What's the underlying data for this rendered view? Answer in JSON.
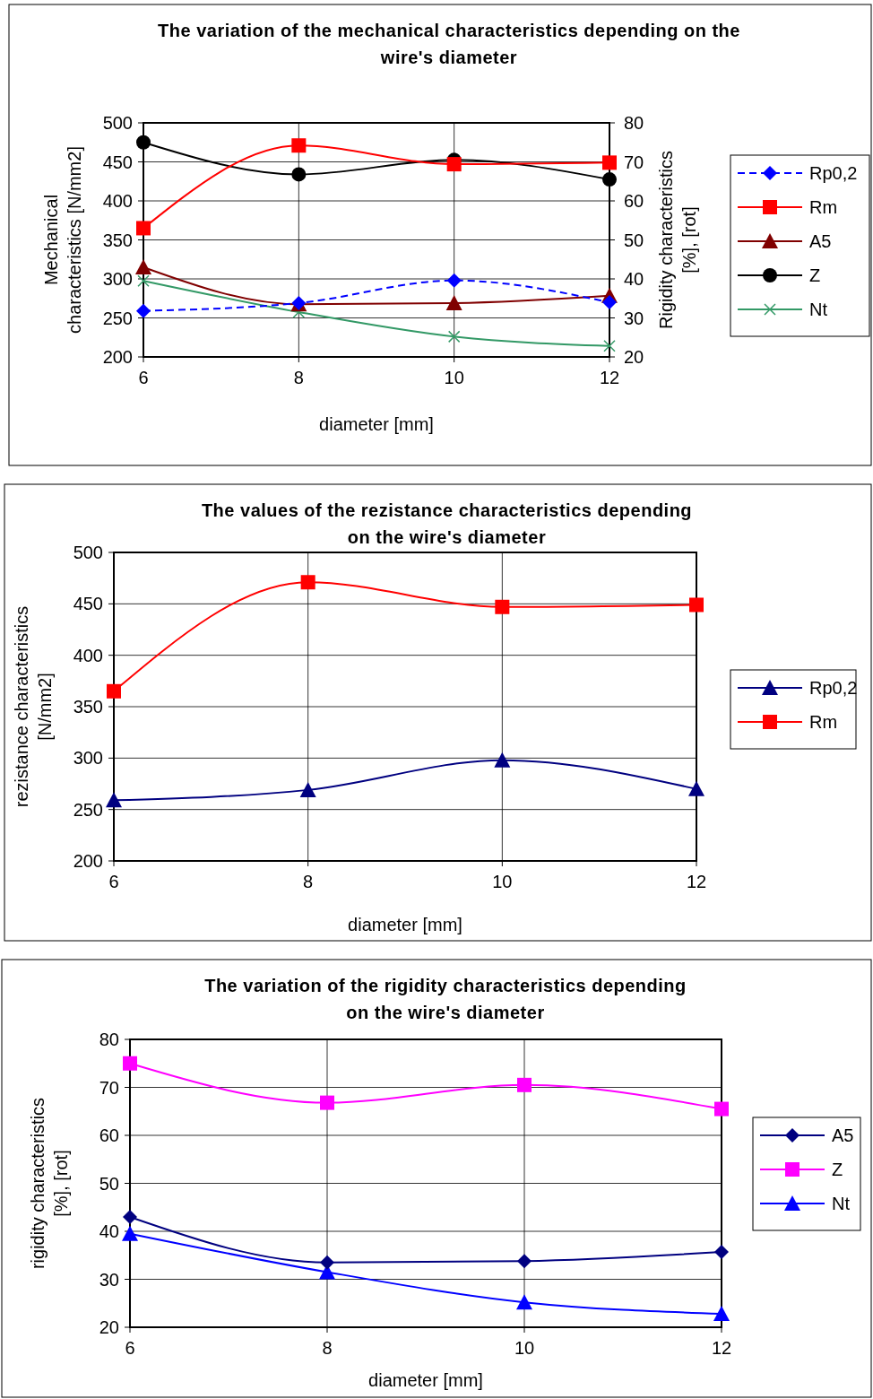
{
  "chart_data": [
    {
      "type": "line",
      "title": "The variation of the mechanical characteristics depending on the wire's diameter",
      "xlabel": "diameter [mm]",
      "ylabel": "Mechanical characteristics [N/mm2]",
      "y2label": "Rigidity characteristics [%], [rot]",
      "x": [
        6,
        8,
        10,
        12
      ],
      "xlim": [
        6,
        12
      ],
      "xticks": [
        6,
        8,
        10,
        12
      ],
      "ylim": [
        200,
        500
      ],
      "yticks": [
        200,
        250,
        300,
        350,
        400,
        450,
        500
      ],
      "y2lim": [
        20,
        80
      ],
      "y2ticks": [
        20,
        30,
        40,
        50,
        60,
        70,
        80
      ],
      "grid": true,
      "legend": "right",
      "series": [
        {
          "name": "Rp0,2",
          "color": "#0000ff",
          "values": [
            259,
            269,
            298,
            270
          ],
          "marker": "diamond",
          "line_style": "dashed"
        },
        {
          "name": "Rm",
          "color": "#ff0000",
          "values": [
            365,
            471,
            447,
            449
          ],
          "marker": "square"
        },
        {
          "name": "A5",
          "color": "#800000",
          "values": [
            43,
            33.5,
            33.8,
            35.7
          ],
          "marker": "triangle",
          "axis": "y2"
        },
        {
          "name": "Z",
          "color": "#000000",
          "values": [
            75,
            66.8,
            70.5,
            65.5
          ],
          "marker": "circle",
          "axis": "y2"
        },
        {
          "name": "Nt",
          "color": "#339966",
          "values": [
            39.5,
            31.5,
            25.2,
            22.8
          ],
          "marker": "cross",
          "axis": "y2"
        }
      ]
    },
    {
      "type": "line",
      "title": "The values of the rezistance characteristics depending on the wire's diameter",
      "xlabel": "diameter [mm]",
      "ylabel": "rezistance characteristics [N/mm2]",
      "x": [
        6,
        8,
        10,
        12
      ],
      "xlim": [
        6,
        12
      ],
      "xticks": [
        6,
        8,
        10,
        12
      ],
      "ylim": [
        200,
        500
      ],
      "yticks": [
        200,
        250,
        300,
        350,
        400,
        450,
        500
      ],
      "grid": true,
      "legend": "right",
      "series": [
        {
          "name": "Rp0,2",
          "color": "#000080",
          "values": [
            259,
            269,
            298,
            270
          ],
          "marker": "triangle"
        },
        {
          "name": "Rm",
          "color": "#ff0000",
          "values": [
            365,
            471,
            447,
            449
          ],
          "marker": "square"
        }
      ]
    },
    {
      "type": "line",
      "title": "The variation of the rigidity characteristics depending on the wire's diameter",
      "xlabel": "diameter [mm]",
      "ylabel": "rigidity characteristics [%], [rot]",
      "x": [
        6,
        8,
        10,
        12
      ],
      "xlim": [
        6,
        12
      ],
      "xticks": [
        6,
        8,
        10,
        12
      ],
      "ylim": [
        20,
        80
      ],
      "yticks": [
        20,
        30,
        40,
        50,
        60,
        70,
        80
      ],
      "grid": true,
      "legend": "right",
      "series": [
        {
          "name": "A5",
          "color": "#000080",
          "values": [
            43,
            33.5,
            33.8,
            35.7
          ],
          "marker": "diamond"
        },
        {
          "name": "Z",
          "color": "#ff00ff",
          "values": [
            75,
            66.8,
            70.5,
            65.5
          ],
          "marker": "square"
        },
        {
          "name": "Nt",
          "color": "#0000ff",
          "values": [
            39.5,
            31.5,
            25.2,
            22.8
          ],
          "marker": "triangle"
        }
      ]
    }
  ]
}
